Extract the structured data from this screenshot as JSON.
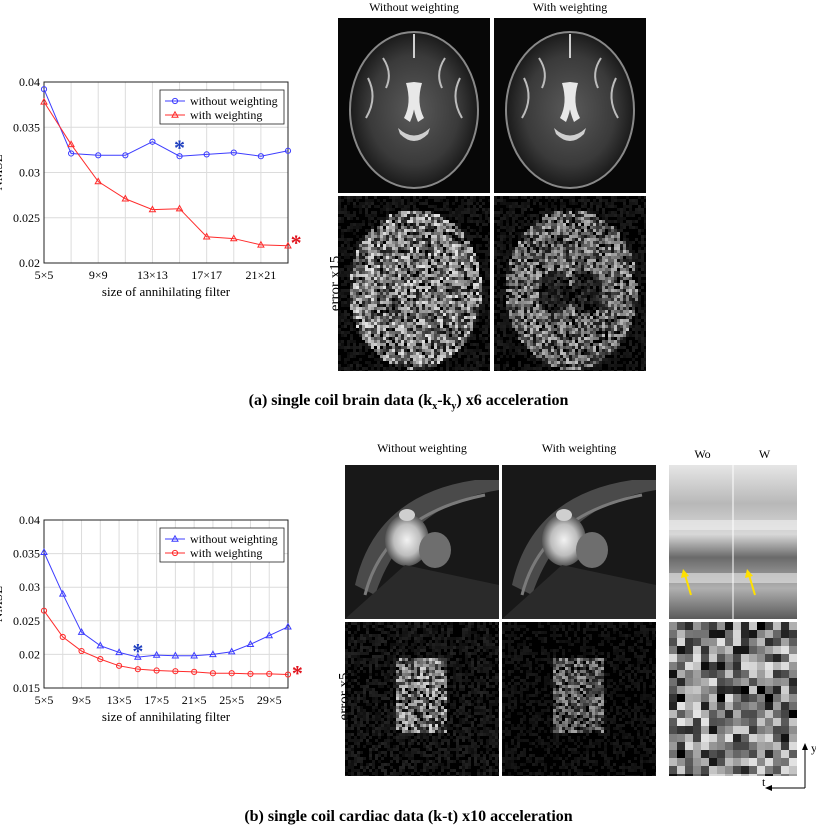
{
  "panel_a": {
    "col_without": "Without weighting",
    "col_with": "With  weighting",
    "row_label": "error x15",
    "caption": {
      "pre": "(a) single coil brain data (k",
      "sub1": "x",
      "mid": "-k",
      "sub2": "y",
      "post": ") x6 acceleration"
    }
  },
  "panel_b": {
    "col_without": "Without weighting",
    "col_with": "With  weighting",
    "col_wo": "Wo",
    "col_w": "W",
    "row_label": "error x5",
    "axis_y": "y",
    "axis_t": "t",
    "caption": "(b) single coil cardiac data (k-t) x10 acceleration"
  },
  "colors": {
    "without": "#3d3dff",
    "with": "#ff2b2b",
    "star_blue": "#1f3fbf",
    "star_red": "#e0141e",
    "arrow": "#ffe000"
  },
  "chart_data": [
    {
      "type": "line",
      "xlabel": "size of annihilating filter",
      "ylabel": "NMSE",
      "ylim": [
        0.02,
        0.04
      ],
      "y_ticks": [
        "0.02",
        "0.025",
        "0.03",
        "0.035",
        "0.04"
      ],
      "x_ticks": [
        "5×5",
        "9×9",
        "13×13",
        "17×17",
        "21×21"
      ],
      "x": [
        5,
        7,
        9,
        11,
        13,
        15,
        17,
        19,
        21,
        23
      ],
      "xlim": [
        5,
        23
      ],
      "grid": true,
      "legend_position": "top-right",
      "series": [
        {
          "name": "without weighting",
          "marker": "circle",
          "values": [
            0.0392,
            0.0321,
            0.0319,
            0.0319,
            0.0334,
            0.0318,
            0.032,
            0.0322,
            0.0318,
            0.0324
          ]
        },
        {
          "name": "with weighting",
          "marker": "triangle",
          "values": [
            0.0378,
            0.0331,
            0.029,
            0.0271,
            0.0259,
            0.026,
            0.0229,
            0.0227,
            0.022,
            0.0219
          ]
        }
      ],
      "markers": [
        {
          "symbol": "*",
          "x": 15,
          "y": 0.0328,
          "color": "#1f3fbf"
        },
        {
          "symbol": "*",
          "x": 23.6,
          "y": 0.0223,
          "color": "#e0141e"
        }
      ]
    },
    {
      "type": "line",
      "xlabel": "size of annihilating filter",
      "ylabel": "NMSE",
      "ylim": [
        0.015,
        0.04
      ],
      "y_ticks": [
        "0.015",
        "0.02",
        "0.025",
        "0.03",
        "0.035",
        "0.04"
      ],
      "x_ticks": [
        "5×5",
        "9×5",
        "13×5",
        "17×5",
        "21×5",
        "25×5",
        "29×5"
      ],
      "x": [
        5,
        7,
        9,
        11,
        13,
        15,
        17,
        19,
        21,
        23,
        25,
        27,
        29,
        31
      ],
      "xlim": [
        5,
        31
      ],
      "grid": true,
      "legend_position": "top-right",
      "series": [
        {
          "name": "without weighting",
          "marker": "triangle",
          "values": [
            0.0352,
            0.029,
            0.0233,
            0.0213,
            0.0203,
            0.0196,
            0.0199,
            0.0198,
            0.0198,
            0.02,
            0.0204,
            0.0215,
            0.0228,
            0.0241
          ]
        },
        {
          "name": "with weighting",
          "marker": "circle",
          "values": [
            0.0265,
            0.0226,
            0.0205,
            0.0193,
            0.0183,
            0.0178,
            0.0176,
            0.0175,
            0.0174,
            0.0172,
            0.0172,
            0.0171,
            0.0171,
            0.017
          ]
        }
      ],
      "markers": [
        {
          "symbol": "*",
          "x": 15,
          "y": 0.0206,
          "color": "#1f3fbf"
        },
        {
          "symbol": "*",
          "x": 32,
          "y": 0.0173,
          "color": "#e0141e"
        }
      ]
    }
  ]
}
